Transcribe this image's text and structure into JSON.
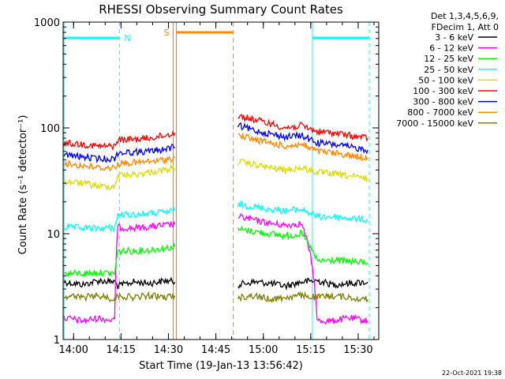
{
  "chart_data": {
    "type": "line",
    "title": "RHESSI Observing Summary Count Rates",
    "xlabel": "Start Time (19-Jan-13 13:56:42)",
    "ylabel": "Count Rate (s⁻¹ detector⁻¹)",
    "y_scale": "log",
    "ylim": [
      1,
      1000
    ],
    "xlim": [
      "13:56:42",
      "15:36:30"
    ],
    "x_ticks": [
      "14:00",
      "14:15",
      "14:30",
      "14:45",
      "15:00",
      "15:15",
      "15:30"
    ],
    "y_ticks": [
      "1",
      "10",
      "100",
      "1000"
    ],
    "legend": {
      "position": "top-right",
      "header": [
        "Det 1,3,4,5,6,9,",
        "FDecim 1, Att 0"
      ]
    },
    "series": [
      {
        "name": "3 - 6 keV",
        "color": "#000000",
        "segments": [
          {
            "x": [
              "13:57",
              "14:03",
              "14:08",
              "14:13",
              "14:14",
              "14:19",
              "14:24",
              "14:29",
              "14:32"
            ],
            "y": [
              3.5,
              3.3,
              3.6,
              3.5,
              3.2,
              3.5,
              3.4,
              3.6,
              3.5
            ]
          },
          {
            "x": [
              "14:52",
              "14:57",
              "15:02",
              "15:07",
              "15:12",
              "15:17",
              "15:22",
              "15:27",
              "15:33"
            ],
            "y": [
              3.3,
              3.5,
              3.4,
              3.2,
              3.5,
              3.6,
              3.3,
              3.4,
              3.5
            ]
          }
        ]
      },
      {
        "name": "6 - 12 keV",
        "color": "#ff00ff",
        "segments": [
          {
            "x": [
              "13:57",
              "14:03",
              "14:08",
              "14:13",
              "14:14",
              "14:19",
              "14:24",
              "14:29",
              "14:32"
            ],
            "y": [
              1.6,
              1.5,
              1.6,
              1.5,
              11.5,
              11.3,
              11.6,
              12.0,
              12.2
            ]
          },
          {
            "x": [
              "14:52",
              "14:57",
              "15:02",
              "15:07",
              "15:12",
              "15:17",
              "15:22",
              "15:27",
              "15:33"
            ],
            "y": [
              14.5,
              13.5,
              12.5,
              12.0,
              12.5,
              1.5,
              1.5,
              1.6,
              1.5
            ]
          }
        ]
      },
      {
        "name": "12 - 25 keV",
        "color": "#00ff00",
        "segments": [
          {
            "x": [
              "13:57",
              "14:03",
              "14:08",
              "14:13",
              "14:14",
              "14:19",
              "14:24",
              "14:29",
              "14:32"
            ],
            "y": [
              4.2,
              4.2,
              4.3,
              4.2,
              6.8,
              6.9,
              7.0,
              7.3,
              7.5
            ]
          },
          {
            "x": [
              "14:52",
              "14:57",
              "15:02",
              "15:07",
              "15:12",
              "15:17",
              "15:22",
              "15:27",
              "15:33"
            ],
            "y": [
              11.0,
              10.5,
              10.0,
              9.5,
              10.0,
              5.5,
              5.6,
              5.5,
              5.3
            ]
          }
        ]
      },
      {
        "name": "25 - 50 keV",
        "color": "#00ffff",
        "segments": [
          {
            "x": [
              "13:57",
              "14:03",
              "14:08",
              "14:13",
              "14:14",
              "14:19",
              "14:24",
              "14:29",
              "14:32"
            ],
            "y": [
              11.5,
              11.3,
              11.2,
              11.4,
              15.0,
              15.2,
              15.5,
              16.0,
              16.5
            ]
          },
          {
            "x": [
              "14:52",
              "14:57",
              "15:02",
              "15:07",
              "15:12",
              "15:17",
              "15:22",
              "15:27",
              "15:33"
            ],
            "y": [
              19.0,
              18.0,
              17.0,
              16.5,
              17.0,
              14.5,
              14.5,
              14.0,
              13.5
            ]
          }
        ]
      },
      {
        "name": "50 - 100 keV",
        "color": "#dddd00",
        "segments": [
          {
            "x": [
              "13:57",
              "14:03",
              "14:08",
              "14:13",
              "14:14",
              "14:19",
              "14:24",
              "14:29",
              "14:32"
            ],
            "y": [
              31,
              30,
              28,
              28,
              36,
              36,
              38,
              40,
              42
            ]
          },
          {
            "x": [
              "14:52",
              "14:57",
              "15:02",
              "15:07",
              "15:12",
              "15:17",
              "15:22",
              "15:27",
              "15:33"
            ],
            "y": [
              48,
              45,
              42,
              40,
              42,
              38,
              37,
              35,
              33
            ]
          }
        ]
      },
      {
        "name": "100 - 300 keV",
        "color": "#ff0000",
        "segments": [
          {
            "x": [
              "13:57",
              "14:03",
              "14:08",
              "14:13",
              "14:14",
              "14:19",
              "14:24",
              "14:29",
              "14:32"
            ],
            "y": [
              72,
              70,
              67,
              67,
              77,
              78,
              80,
              85,
              90
            ]
          },
          {
            "x": [
              "14:52",
              "14:57",
              "15:02",
              "15:07",
              "15:12",
              "15:17",
              "15:22",
              "15:27",
              "15:33"
            ],
            "y": [
              130,
              120,
              110,
              100,
              105,
              92,
              90,
              85,
              80
            ]
          }
        ]
      },
      {
        "name": "300 - 800 keV",
        "color": "#0000ff",
        "segments": [
          {
            "x": [
              "13:57",
              "14:03",
              "14:08",
              "14:13",
              "14:14",
              "14:19",
              "14:24",
              "14:29",
              "14:32"
            ],
            "y": [
              56,
              53,
              51,
              51,
              58,
              59,
              60,
              63,
              66
            ]
          },
          {
            "x": [
              "14:52",
              "14:57",
              "15:02",
              "15:07",
              "15:12",
              "15:17",
              "15:22",
              "15:27",
              "15:33"
            ],
            "y": [
              105,
              95,
              88,
              82,
              85,
              72,
              70,
              66,
              62
            ]
          }
        ]
      },
      {
        "name": "800 - 7000 keV",
        "color": "#ff8800",
        "segments": [
          {
            "x": [
              "13:57",
              "14:03",
              "14:08",
              "14:13",
              "14:14",
              "14:19",
              "14:24",
              "14:29",
              "14:32"
            ],
            "y": [
              46,
              44,
              42,
              42,
              46,
              47,
              48,
              50,
              52
            ]
          },
          {
            "x": [
              "14:52",
              "14:57",
              "15:02",
              "15:07",
              "15:12",
              "15:17",
              "15:22",
              "15:27",
              "15:33"
            ],
            "y": [
              85,
              78,
              72,
              67,
              70,
              60,
              58,
              55,
              52
            ]
          }
        ]
      },
      {
        "name": "7000 - 15000 keV",
        "color": "#808000",
        "segments": [
          {
            "x": [
              "13:57",
              "14:03",
              "14:08",
              "14:13",
              "14:14",
              "14:19",
              "14:24",
              "14:29",
              "14:32"
            ],
            "y": [
              2.6,
              2.5,
              2.6,
              2.4,
              2.6,
              2.5,
              2.6,
              2.5,
              2.6
            ]
          },
          {
            "x": [
              "14:52",
              "14:57",
              "15:02",
              "15:07",
              "15:12",
              "15:17",
              "15:22",
              "15:27",
              "15:33"
            ],
            "y": [
              2.5,
              2.6,
              2.4,
              2.5,
              2.6,
              2.5,
              2.6,
              2.5,
              2.4
            ]
          }
        ]
      }
    ],
    "annotations": {
      "night_label": "N",
      "saa_label": "S",
      "night_color": "#00ffff",
      "saa_color": "#ff8800",
      "night_bars": [
        {
          "start": "13:57",
          "end": "14:14:30"
        },
        {
          "start": "15:15:30",
          "end": "15:33:30"
        }
      ],
      "saa_bar": {
        "start": "14:32:30",
        "end": "14:50:30"
      },
      "night_solid_lines": [
        "13:57",
        "15:15:30"
      ],
      "night_dashed_lines": [
        "14:14:30",
        "15:33:30"
      ],
      "saa_solid_lines": [
        "14:31:30",
        "14:32:30"
      ],
      "saa_dashed_lines": [
        "14:50:30"
      ]
    },
    "footer_date": "22-Oct-2021 19:38"
  }
}
